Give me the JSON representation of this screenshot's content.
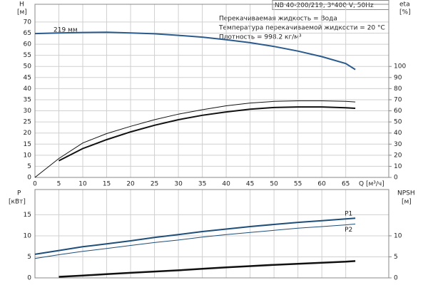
{
  "chart_data": [
    {
      "type": "line",
      "title": "NB 40-200/219, 3*400 V, 50Hz",
      "annotations": [
        "Перекачиваемая жидкость = Вода",
        "Температура перекачиваемой жидкости = 20 °C",
        "Плотность = 998.2 кг/м³"
      ],
      "ylabel": [
        "H",
        "[м]"
      ],
      "y2label": [
        "eta",
        "[%]"
      ],
      "xlabel": "Q [м³/ч]",
      "x": [
        0,
        5,
        10,
        15,
        20,
        25,
        30,
        35,
        40,
        45,
        50,
        55,
        60,
        65,
        67
      ],
      "xlim": [
        0,
        74
      ],
      "xticks": [
        0,
        5,
        10,
        15,
        20,
        25,
        30,
        35,
        40,
        45,
        50,
        55,
        60,
        65
      ],
      "ylim": [
        0,
        78
      ],
      "yticks": [
        0,
        5,
        10,
        15,
        20,
        25,
        30,
        35,
        40,
        45,
        50,
        55,
        60,
        65,
        70
      ],
      "y2lim": [
        0,
        156
      ],
      "y2ticks": [
        0,
        10,
        20,
        30,
        40,
        50,
        60,
        70,
        80,
        90,
        100
      ],
      "grid": true,
      "series": [
        {
          "name": "219 мм",
          "color": "#2a5b8c",
          "linewidth": 2,
          "values": [
            64.8,
            65.1,
            65.3,
            65.4,
            65.1,
            64.7,
            64.0,
            63.2,
            62.0,
            60.7,
            59.0,
            56.9,
            54.4,
            51.3,
            48.6
          ]
        },
        {
          "color": "#111111",
          "linewidth": 2,
          "axis": "y2",
          "values": [
            null,
            15,
            26,
            34,
            41,
            47,
            52,
            56,
            59,
            61.5,
            63,
            63.5,
            63.5,
            62.8,
            62.3
          ]
        },
        {
          "color": "#111111",
          "linewidth": 1,
          "axis": "y2",
          "values": [
            0,
            17,
            31,
            39.5,
            46,
            52,
            57,
            61,
            64.5,
            67,
            68.5,
            69,
            69,
            68.5,
            68
          ]
        }
      ]
    },
    {
      "type": "line",
      "ylabel": [
        "P",
        "[кВт]"
      ],
      "y2label": [
        "NPSH",
        "[м]"
      ],
      "x": [
        0,
        5,
        10,
        15,
        20,
        25,
        30,
        35,
        40,
        45,
        50,
        55,
        60,
        65,
        67
      ],
      "xlim": [
        0,
        74
      ],
      "ylim": [
        0,
        21
      ],
      "yticks": [
        0,
        5,
        10,
        15
      ],
      "y2lim": [
        0,
        21
      ],
      "y2ticks": [
        0,
        5,
        10
      ],
      "grid": true,
      "series": [
        {
          "name": "P1",
          "color": "#1f4e79",
          "linewidth": 2,
          "values": [
            5.6,
            6.5,
            7.4,
            8.1,
            8.8,
            9.6,
            10.3,
            11.0,
            11.6,
            12.2,
            12.7,
            13.2,
            13.6,
            14.0,
            14.2
          ]
        },
        {
          "name": "P2",
          "color": "#1f4e79",
          "linewidth": 1,
          "values": [
            4.6,
            5.5,
            6.3,
            7.0,
            7.7,
            8.4,
            9.0,
            9.7,
            10.3,
            10.8,
            11.3,
            11.8,
            12.2,
            12.6,
            12.8
          ]
        },
        {
          "color": "#111111",
          "linewidth": 2.5,
          "axis": "y2",
          "values": [
            null,
            0.25,
            0.55,
            0.9,
            1.2,
            1.5,
            1.8,
            2.15,
            2.5,
            2.8,
            3.1,
            3.35,
            3.6,
            3.85,
            4.0
          ]
        }
      ]
    }
  ]
}
